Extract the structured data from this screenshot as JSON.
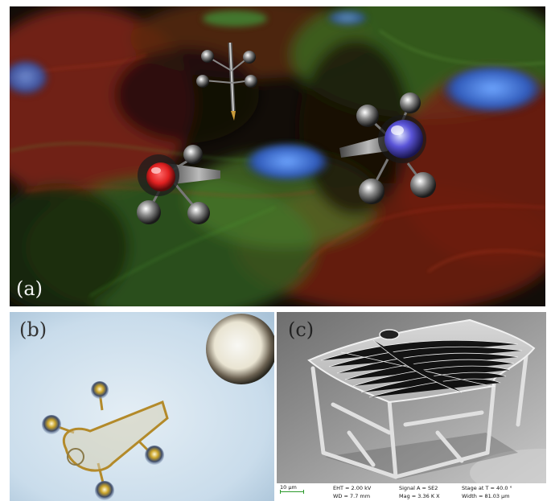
{
  "panels": {
    "a": {
      "label": "(a)"
    },
    "b": {
      "label": "(b)"
    },
    "c": {
      "label": "(c)"
    }
  },
  "sem_info": {
    "scale": "10 µm",
    "eht": "EHT = 2.00 kV",
    "wd": "WD = 7.7 mm",
    "signal": "Signal A = SE2",
    "mag": "Mag = 3.36 K X",
    "stage": "Stage at T = 40.0 °",
    "width": "Width = 81.03 µm"
  },
  "colors": {
    "actin_red": "#b8331f",
    "tubulin_green": "#3f8a2e",
    "nucleus_blue": "#3c6fd0",
    "background_b": "#bfd6e6",
    "microrobot_outline": "#b38a2a"
  }
}
